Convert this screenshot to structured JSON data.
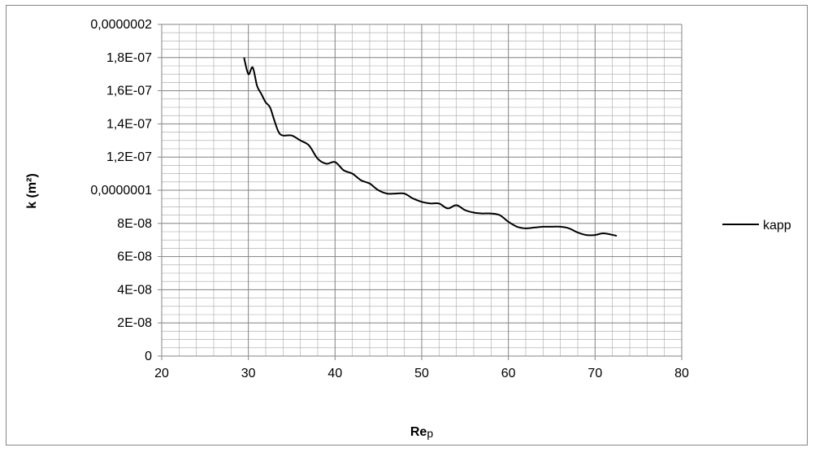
{
  "chart_data": {
    "type": "line",
    "xlabel": "Re",
    "xlabel_sub": "p",
    "ylabel": "k (m²)",
    "xlim": [
      20,
      80
    ],
    "ylim": [
      0,
      2e-07
    ],
    "grid": true,
    "legend_position": "right",
    "x_ticks": [
      20,
      30,
      40,
      50,
      60,
      70,
      80
    ],
    "x_tick_labels": [
      "20",
      "30",
      "40",
      "50",
      "60",
      "70",
      "80"
    ],
    "y_ticks": [
      0,
      2e-08,
      4e-08,
      6e-08,
      8e-08,
      1e-07,
      1.2e-07,
      1.4e-07,
      1.6e-07,
      1.8e-07,
      2e-07
    ],
    "y_tick_labels": [
      "0",
      "2E-08",
      "4E-08",
      "6E-08",
      "8E-08",
      "0,0000001",
      "1,2E-07",
      "1,4E-07",
      "1,6E-07",
      "1,8E-07",
      "0,0000002"
    ],
    "series": [
      {
        "name": "kapp",
        "color": "#000000",
        "x": [
          29.5,
          30.0,
          30.5,
          31.0,
          31.5,
          32.0,
          32.5,
          33.0,
          33.5,
          34.0,
          35.0,
          36.0,
          37.0,
          38.0,
          39.0,
          40.0,
          41.0,
          42.0,
          43.0,
          44.0,
          45.0,
          46.0,
          47.0,
          48.0,
          49.0,
          50.0,
          51.0,
          52.0,
          53.0,
          54.0,
          55.0,
          56.0,
          57.0,
          58.0,
          59.0,
          60.0,
          61.0,
          62.0,
          63.0,
          64.0,
          65.0,
          66.0,
          67.0,
          68.0,
          69.0,
          70.0,
          71.0,
          72.5
        ],
        "y": [
          1.8e-07,
          1.7e-07,
          1.74e-07,
          1.63e-07,
          1.58e-07,
          1.53e-07,
          1.5e-07,
          1.42e-07,
          1.35e-07,
          1.33e-07,
          1.33e-07,
          1.3e-07,
          1.27e-07,
          1.19e-07,
          1.16e-07,
          1.17e-07,
          1.12e-07,
          1.1e-07,
          1.06e-07,
          1.04e-07,
          1e-07,
          9.8e-08,
          9.8e-08,
          9.8e-08,
          9.5e-08,
          9.3e-08,
          9.2e-08,
          9.2e-08,
          8.9e-08,
          9.1e-08,
          8.8e-08,
          8.65e-08,
          8.6e-08,
          8.6e-08,
          8.5e-08,
          8.1e-08,
          7.8e-08,
          7.7e-08,
          7.75e-08,
          7.8e-08,
          7.8e-08,
          7.8e-08,
          7.7e-08,
          7.45e-08,
          7.3e-08,
          7.3e-08,
          7.4e-08,
          7.25e-08
        ]
      }
    ]
  }
}
